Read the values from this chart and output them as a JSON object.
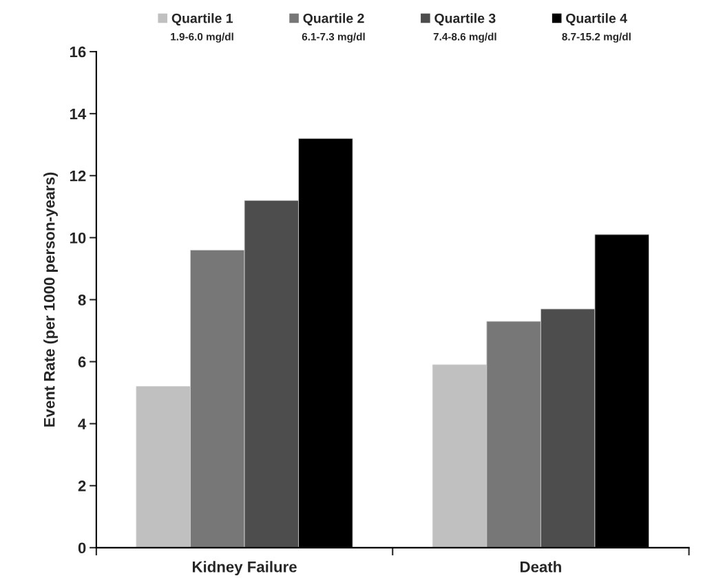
{
  "chart_data": {
    "type": "bar",
    "ylabel": "Event Rate (per 1000 person-years)",
    "categories": [
      "Kidney Failure",
      "Death"
    ],
    "series": [
      {
        "name": "Quartile 1",
        "color": "#c0c0c0",
        "values": [
          5.2,
          5.9
        ]
      },
      {
        "name": "Quartile 2",
        "color": "#777777",
        "values": [
          9.6,
          7.3
        ]
      },
      {
        "name": "Quartile 3",
        "color": "#4d4d4d",
        "values": [
          11.2,
          7.7
        ]
      },
      {
        "name": "Quartile 4",
        "color": "#000000",
        "values": [
          13.2,
          10.1
        ]
      }
    ],
    "annotations": [
      "1.9-6.0 mg/dl",
      "6.1-7.3 mg/dl",
      "7.4-8.6 mg/dl",
      "8.7-15.2 mg/dl"
    ],
    "ylim": [
      0,
      16
    ],
    "yticks": [
      0,
      2,
      4,
      6,
      8,
      10,
      12,
      14,
      16
    ],
    "grid": false,
    "legend": "top"
  }
}
